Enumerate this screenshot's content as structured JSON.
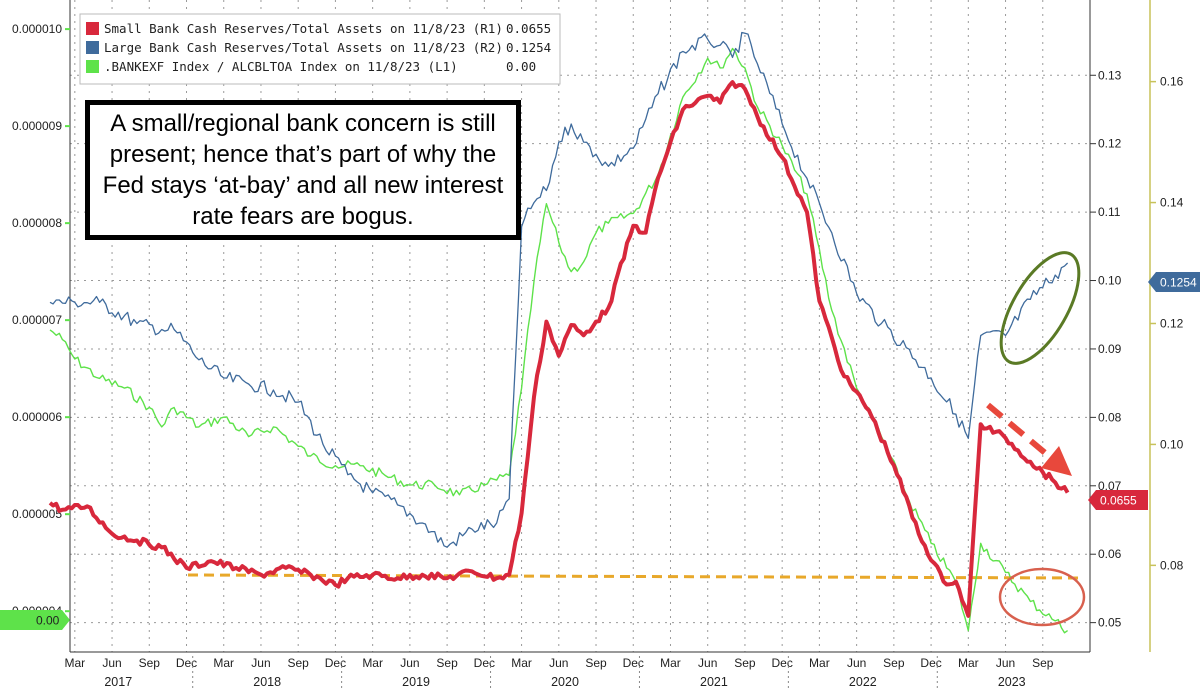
{
  "annotation": "A small/regional bank concern is still present; hence that’s part of why the Fed stays ‘at-bay’ and all new interest rate fears are bogus.",
  "colors": {
    "small_bank": "#d8283c",
    "large_bank": "#3f6b9c",
    "bankexf": "#5ee24a",
    "support_line": "#e8a82a",
    "large_circle": "#5a7a25",
    "small_circle": "#d8604e",
    "arrow": "#e8483c",
    "right_axis_line": "#c8c25a"
  },
  "chart_data": {
    "type": "line",
    "legend_position": "top-left",
    "grid": true,
    "legend": [
      {
        "label": "Small Bank Cash Reserves/Total Assets on 11/8/23 (R1)",
        "value": "0.0655"
      },
      {
        "label": "Large Bank Cash Reserves/Total Assets on 11/8/23 (R2)",
        "value": "0.1254"
      },
      {
        "label": ".BANKEXF Index / ALCBLTOA Index on 11/8/23 (L1)",
        "value": "0.00"
      }
    ],
    "left_axis": {
      "ticks": [
        "0.000010",
        "0.000009",
        "0.000008",
        "0.000007",
        "0.000006",
        "0.000005",
        "0.000004"
      ],
      "ylim": [
        3.6e-06,
        1.03e-05
      ]
    },
    "right_axis_1": {
      "ticks": [
        "0.13",
        "0.12",
        "0.11",
        "0.10",
        "0.09",
        "0.08",
        "0.07",
        "0.06",
        "0.05"
      ],
      "ylim": [
        0.046,
        0.141
      ]
    },
    "right_axis_2": {
      "ticks": [
        "0.16",
        "0.14",
        "0.12",
        "0.10",
        "0.08"
      ],
      "ylim": [
        0.066,
        0.1735
      ]
    },
    "x_month_ticks": [
      "Mar",
      "Jun",
      "Sep",
      "Dec",
      "Mar",
      "Jun",
      "Sep",
      "Dec",
      "Mar",
      "Jun",
      "Sep",
      "Dec",
      "Mar",
      "Jun",
      "Sep",
      "Dec",
      "Mar",
      "Jun",
      "Sep",
      "Dec",
      "Mar",
      "Jun",
      "Sep",
      "Dec",
      "Mar",
      "Jun",
      "Sep"
    ],
    "x_years": [
      "2017",
      "2018",
      "2019",
      "2020",
      "2021",
      "2022",
      "2023"
    ],
    "badges": {
      "small_bank": "0.0655",
      "large_bank": "0.1254",
      "bankexf": "0.00"
    },
    "series": [
      {
        "name": "Small Bank Cash Reserves/Total Assets",
        "axis": "R1",
        "x": [
          "2017-01",
          "2017-02",
          "2017-04",
          "2017-06",
          "2017-08",
          "2017-10",
          "2017-12",
          "2018-02",
          "2018-04",
          "2018-06",
          "2018-08",
          "2018-10",
          "2018-12",
          "2019-01",
          "2019-03",
          "2019-05",
          "2019-07",
          "2019-09",
          "2019-11",
          "2020-01",
          "2020-02",
          "2020-03",
          "2020-04",
          "2020-05",
          "2020-06",
          "2020-07",
          "2020-08",
          "2020-09",
          "2020-10",
          "2020-12",
          "2021-01",
          "2021-02",
          "2021-04",
          "2021-06",
          "2021-07",
          "2021-08",
          "2021-09",
          "2021-10",
          "2021-12",
          "2022-02",
          "2022-03",
          "2022-05",
          "2022-07",
          "2022-09",
          "2022-11",
          "2023-01",
          "2023-02",
          "2023-03",
          "2023-04",
          "2023-06",
          "2023-08",
          "2023-10",
          "2023-11"
        ],
        "values": [
          0.0675,
          0.0665,
          0.067,
          0.063,
          0.062,
          0.061,
          0.058,
          0.059,
          0.058,
          0.057,
          0.058,
          0.057,
          0.0555,
          0.0565,
          0.057,
          0.0565,
          0.057,
          0.0565,
          0.0575,
          0.0565,
          0.057,
          0.066,
          0.083,
          0.094,
          0.089,
          0.0935,
          0.092,
          0.094,
          0.096,
          0.108,
          0.107,
          0.115,
          0.125,
          0.127,
          0.126,
          0.129,
          0.128,
          0.124,
          0.118,
          0.11,
          0.097,
          0.086,
          0.081,
          0.073,
          0.063,
          0.056,
          0.056,
          0.051,
          0.079,
          0.077,
          0.0735,
          0.0705,
          0.069
        ]
      },
      {
        "name": "Large Bank Cash Reserves/Total Assets",
        "axis": "R2",
        "x": [
          "2017-01",
          "2017-03",
          "2017-05",
          "2017-08",
          "2017-10",
          "2017-11",
          "2018-01",
          "2018-03",
          "2018-05",
          "2018-07",
          "2018-09",
          "2018-11",
          "2019-01",
          "2019-03",
          "2019-05",
          "2019-07",
          "2019-09",
          "2019-11",
          "2020-01",
          "2020-02",
          "2020-03",
          "2020-04",
          "2020-05",
          "2020-06",
          "2020-07",
          "2020-08",
          "2020-09",
          "2020-10",
          "2020-12",
          "2021-02",
          "2021-04",
          "2021-06",
          "2021-07",
          "2021-08",
          "2021-09",
          "2021-10",
          "2021-12",
          "2022-02",
          "2022-04",
          "2022-06",
          "2022-08",
          "2022-10",
          "2022-12",
          "2023-02",
          "2023-03",
          "2023-04",
          "2023-06",
          "2023-08",
          "2023-10",
          "2023-11"
        ],
        "values": [
          0.1235,
          0.1235,
          0.1235,
          0.12,
          0.119,
          0.119,
          0.114,
          0.111,
          0.11,
          0.109,
          0.107,
          0.1,
          0.095,
          0.092,
          0.09,
          0.087,
          0.083,
          0.086,
          0.087,
          0.091,
          0.136,
          0.14,
          0.142,
          0.15,
          0.153,
          0.15,
          0.148,
          0.146,
          0.149,
          0.158,
          0.165,
          0.167,
          0.166,
          0.164,
          0.168,
          0.163,
          0.153,
          0.144,
          0.135,
          0.125,
          0.12,
          0.116,
          0.111,
          0.105,
          0.101,
          0.118,
          0.118,
          0.124,
          0.128,
          0.13
        ]
      },
      {
        "name": ".BANKEXF Index / ALCBLTOA Index",
        "axis": "L1",
        "x": [
          "2017-01",
          "2017-02",
          "2017-03",
          "2017-05",
          "2017-07",
          "2017-09",
          "2017-10",
          "2017-11",
          "2018-01",
          "2018-03",
          "2018-05",
          "2018-07",
          "2018-09",
          "2018-10",
          "2018-12",
          "2019-02",
          "2019-04",
          "2019-06",
          "2019-08",
          "2019-10",
          "2019-12",
          "2020-02",
          "2020-03",
          "2020-04",
          "2020-05",
          "2020-06",
          "2020-07",
          "2020-08",
          "2020-09",
          "2020-10",
          "2020-12",
          "2021-02",
          "2021-04",
          "2021-06",
          "2021-07",
          "2021-08",
          "2021-09",
          "2021-10",
          "2021-12",
          "2022-02",
          "2022-04",
          "2022-06",
          "2022-08",
          "2022-10",
          "2022-12",
          "2023-02",
          "2023-03",
          "2023-04",
          "2023-06",
          "2023-08",
          "2023-10",
          "2023-11"
        ],
        "values": [
          6.9e-06,
          6.8e-06,
          6.6e-06,
          6.4e-06,
          6.3e-06,
          6.1e-06,
          5.9e-06,
          6.1e-06,
          5.9e-06,
          6e-06,
          5.8e-06,
          5.9e-06,
          5.7e-06,
          5.6e-06,
          5.5e-06,
          5.5e-06,
          5.4e-06,
          5.3e-06,
          5.3e-06,
          5.2e-06,
          5.3e-06,
          5.4e-06,
          6.3e-06,
          7.4e-06,
          8.2e-06,
          7.8e-06,
          7.5e-06,
          7.6e-06,
          7.9e-06,
          8e-06,
          8.1e-06,
          8.5e-06,
          9.3e-06,
          9.7e-06,
          9.6e-06,
          9.8e-06,
          9.6e-06,
          9.2e-06,
          8.8e-06,
          8.3e-06,
          7.1e-06,
          6.3e-06,
          5.8e-06,
          5.2e-06,
          4.7e-06,
          4.3e-06,
          3.8e-06,
          4.7e-06,
          4.4e-06,
          4.1e-06,
          3.9e-06,
          3.8e-06
        ]
      }
    ]
  }
}
